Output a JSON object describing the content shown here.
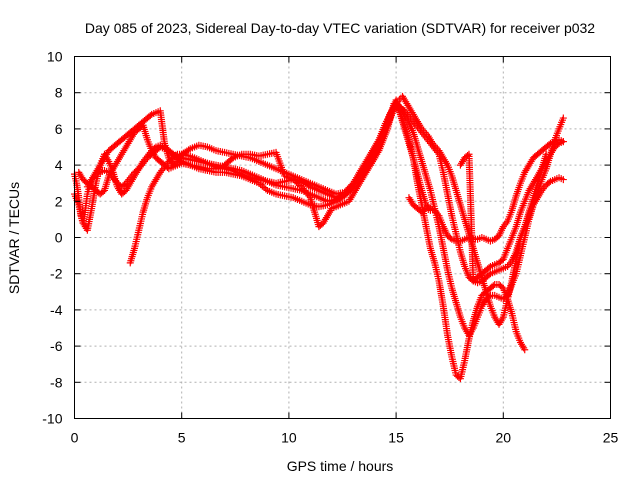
{
  "chart_data": {
    "type": "scatter",
    "title": "Day 085 of 2023, Sidereal Day-to-day VTEC variation (SDTVAR) for receiver p032",
    "xlabel": "GPS time / hours",
    "ylabel": "SDTVAR / TECUs",
    "xlim": [
      0,
      25
    ],
    "ylim": [
      -10,
      10
    ],
    "xticks": [
      0,
      5,
      10,
      15,
      20,
      25
    ],
    "yticks": [
      -10,
      -8,
      -6,
      -4,
      -2,
      0,
      2,
      4,
      6,
      8,
      10
    ],
    "grid": true,
    "marker": "+",
    "color": "#ff0000",
    "series": [
      {
        "x": [
          0.0,
          0.1,
          0.2,
          0.3,
          0.4,
          0.5,
          0.6,
          0.7,
          0.8,
          0.9,
          1.0,
          1.2,
          1.4,
          1.6,
          1.8,
          2.0,
          2.2,
          2.4,
          2.6,
          2.8,
          3.0,
          3.2,
          3.4,
          3.6,
          3.8,
          4.0,
          4.2,
          4.4,
          4.6,
          4.8,
          5.0,
          5.4,
          5.8,
          6.2,
          6.6,
          7.0,
          7.4,
          7.8,
          8.2,
          8.6,
          9.0,
          9.4,
          9.8,
          10.2,
          10.6,
          11.0,
          11.4,
          11.8,
          12.2,
          12.6,
          13.0,
          13.4,
          13.8,
          14.2,
          14.5,
          14.8,
          15.0,
          15.2,
          15.4,
          15.6,
          15.8,
          16.0,
          16.2,
          16.4,
          16.6,
          16.8,
          17.0,
          17.2,
          17.4,
          17.6,
          17.8,
          18.0,
          18.2,
          18.4,
          18.6,
          18.8,
          19.0,
          19.2,
          19.4,
          19.6,
          19.8,
          20.0,
          20.2,
          20.4,
          20.6,
          20.8,
          21.0,
          21.2,
          21.4,
          21.6,
          21.8,
          22.0,
          22.2,
          22.4,
          22.6,
          22.8
        ],
        "y": [
          3.5,
          3.0,
          2.2,
          1.2,
          0.8,
          1.5,
          2.4,
          2.8,
          3.2,
          3.4,
          3.5,
          3.6,
          3.7,
          3.6,
          3.3,
          3.0,
          2.8,
          3.0,
          3.3,
          3.6,
          3.8,
          4.1,
          4.4,
          4.6,
          4.8,
          5.0,
          4.9,
          4.8,
          4.6,
          4.5,
          4.4,
          4.3,
          4.2,
          4.1,
          4.0,
          3.9,
          3.8,
          3.7,
          3.5,
          3.3,
          3.1,
          2.9,
          2.8,
          2.7,
          2.6,
          2.4,
          2.2,
          2.0,
          2.1,
          2.4,
          2.9,
          3.6,
          4.4,
          5.4,
          6.3,
          7.0,
          7.3,
          6.9,
          6.2,
          5.4,
          4.4,
          3.5,
          2.6,
          1.8,
          1.6,
          1.5,
          1.2,
          0.6,
          0.1,
          -0.1,
          -0.2,
          -0.2,
          -0.1,
          0.0,
          -0.1,
          -0.1,
          0.0,
          -0.1,
          -0.2,
          -0.1,
          0.1,
          0.6,
          0.9,
          1.5,
          2.3,
          3.0,
          3.6,
          4.0,
          4.4,
          4.6,
          4.8,
          5.0,
          5.2,
          5.3,
          5.4,
          5.3
        ]
      },
      {
        "x": [
          0.0,
          0.2,
          0.4,
          0.6,
          0.8,
          1.0,
          1.2,
          1.4,
          1.6,
          1.8,
          2.0,
          2.2,
          2.4,
          2.6,
          2.8,
          3.0,
          3.2,
          3.4,
          3.6,
          3.8,
          4.0,
          4.2,
          4.4,
          4.6,
          4.8,
          5.0,
          5.4,
          5.8,
          6.2,
          6.6,
          7.0,
          7.4,
          7.8,
          8.2,
          8.6,
          9.0,
          9.4,
          9.8,
          10.2,
          10.6,
          11.0,
          11.4,
          11.8,
          12.2,
          12.6,
          13.0,
          13.4,
          13.8,
          14.2,
          14.6,
          14.9,
          15.2,
          15.5,
          15.8,
          16.0,
          16.2,
          16.4,
          16.6,
          16.8,
          17.0,
          17.2,
          17.4,
          17.6,
          17.8,
          18.0,
          18.2,
          18.4,
          18.6,
          18.8,
          19.0,
          19.2,
          19.4,
          19.6,
          19.8,
          20.0,
          20.2,
          20.4,
          20.6,
          20.8,
          21.0,
          21.2,
          21.4,
          21.6,
          21.8,
          22.0,
          22.2,
          22.4,
          22.6,
          22.8
        ],
        "y": [
          2.4,
          1.8,
          0.8,
          0.4,
          1.6,
          3.0,
          4.0,
          4.6,
          4.2,
          3.6,
          2.8,
          2.4,
          2.6,
          3.0,
          3.4,
          3.8,
          4.2,
          4.5,
          4.8,
          5.0,
          5.1,
          5.0,
          4.8,
          4.6,
          4.4,
          4.2,
          4.0,
          3.8,
          3.7,
          3.6,
          3.6,
          3.5,
          3.4,
          3.2,
          3.0,
          2.6,
          2.4,
          2.3,
          2.2,
          2.0,
          1.8,
          1.7,
          1.8,
          2.0,
          2.3,
          2.8,
          3.4,
          4.0,
          4.8,
          6.0,
          7.4,
          7.2,
          6.6,
          5.8,
          5.0,
          4.2,
          3.4,
          2.6,
          1.6,
          0.6,
          -0.6,
          -1.8,
          -2.8,
          -3.6,
          -4.4,
          -5.0,
          -5.4,
          -5.0,
          -4.4,
          -3.8,
          -3.4,
          -3.2,
          -3.2,
          -3.3,
          -3.4,
          -3.2,
          -2.6,
          -2.0,
          -1.0,
          0.0,
          1.0,
          1.8,
          2.5,
          3.2,
          3.8,
          4.6,
          5.4,
          6.0,
          6.6
        ]
      },
      {
        "x": [
          0.6,
          0.8,
          1.0,
          1.2,
          1.4,
          1.6,
          1.8,
          2.0,
          2.2,
          2.4,
          2.6,
          2.8,
          3.0,
          3.2,
          3.4,
          3.6,
          3.8,
          4.0,
          4.2,
          4.4,
          4.6,
          4.8,
          5.0,
          5.4,
          5.8,
          6.2,
          6.6,
          7.0,
          7.4,
          7.8,
          8.2,
          8.6,
          9.0,
          9.4,
          9.8,
          10.2,
          10.6,
          11.0,
          11.4,
          11.8,
          12.2,
          12.6,
          13.0,
          13.4,
          13.8,
          14.2,
          14.6,
          15.0,
          15.4,
          15.8,
          16.2,
          16.6,
          17.0,
          17.2,
          17.4,
          17.6,
          17.8,
          18.0,
          18.2,
          18.4,
          18.6,
          18.8,
          19.0,
          19.2,
          19.4,
          19.6,
          19.8,
          20.0,
          20.2,
          20.4,
          20.6,
          20.8,
          21.0,
          21.2,
          21.4,
          21.6,
          21.8,
          22.0,
          22.2,
          22.4,
          22.6,
          22.8
        ],
        "y": [
          2.8,
          3.2,
          3.6,
          4.0,
          4.4,
          4.8,
          5.0,
          5.2,
          5.4,
          5.6,
          5.8,
          6.0,
          6.2,
          6.4,
          6.6,
          6.8,
          6.9,
          7.0,
          5.2,
          4.4,
          4.0,
          4.2,
          4.6,
          4.9,
          5.1,
          5.0,
          4.8,
          4.7,
          4.6,
          4.5,
          4.4,
          4.2,
          4.0,
          3.8,
          3.6,
          3.4,
          3.2,
          3.0,
          2.8,
          2.6,
          2.4,
          2.5,
          3.0,
          3.8,
          4.6,
          5.4,
          6.2,
          7.4,
          7.0,
          6.4,
          5.8,
          5.2,
          4.6,
          3.6,
          2.4,
          1.2,
          0.2,
          -0.8,
          -1.6,
          -2.2,
          -2.4,
          -2.5,
          -2.4,
          -2.2,
          -2.0,
          -1.9,
          -1.8,
          -1.7,
          -1.6,
          -1.3,
          -0.8,
          0.0,
          0.6,
          1.2,
          1.8,
          2.2,
          2.6,
          2.9,
          3.1,
          3.2,
          3.3,
          3.2
        ]
      },
      {
        "x": [
          2.6,
          2.8,
          3.0,
          3.2,
          3.4,
          3.6,
          3.8,
          4.0,
          4.2,
          4.4,
          4.6,
          4.8,
          5.0,
          5.4,
          5.8,
          6.2,
          6.6,
          7.0,
          7.4,
          7.8,
          8.2,
          8.6,
          9.0,
          9.4,
          9.8,
          10.2,
          10.6,
          11.0,
          11.4,
          11.8,
          12.2,
          12.6,
          13.0,
          13.4,
          13.8,
          14.2,
          14.6,
          15.0,
          15.4,
          15.8,
          16.0,
          16.2,
          16.4,
          16.6,
          16.8,
          17.0,
          17.2,
          17.4,
          17.6,
          17.8,
          18.0,
          18.2,
          18.4,
          18.6,
          18.8,
          19.0,
          19.2,
          19.4,
          19.6,
          19.8,
          20.0,
          20.2,
          20.4,
          20.6,
          20.8,
          21.0
        ],
        "y": [
          -1.4,
          -0.6,
          0.4,
          1.4,
          2.2,
          2.8,
          3.2,
          3.6,
          3.9,
          4.2,
          4.4,
          4.6,
          4.6,
          4.5,
          4.3,
          4.1,
          3.9,
          3.8,
          3.7,
          3.5,
          3.3,
          3.2,
          3.1,
          3.0,
          3.1,
          3.2,
          3.1,
          2.8,
          2.6,
          2.4,
          2.2,
          2.4,
          2.8,
          3.4,
          4.2,
          5.0,
          6.4,
          7.6,
          6.0,
          4.4,
          3.0,
          1.8,
          0.6,
          -0.6,
          -1.4,
          -2.4,
          -3.8,
          -5.4,
          -6.6,
          -7.6,
          -7.8,
          -6.8,
          -5.6,
          -4.6,
          -3.8,
          -3.2,
          -3.0,
          -2.8,
          -2.6,
          -2.6,
          -2.8,
          -3.4,
          -4.2,
          -5.2,
          -5.8,
          -6.2
        ]
      },
      {
        "x": [
          0.2,
          0.4,
          0.6,
          0.8,
          1.0,
          1.2,
          1.4,
          1.6,
          1.8,
          2.0,
          2.2,
          2.4,
          2.6,
          2.8,
          3.0,
          3.2,
          3.4,
          3.6,
          3.8,
          4.0,
          4.2,
          4.4,
          4.6,
          4.8,
          5.0,
          5.4,
          5.8,
          6.2,
          6.6,
          7.0,
          7.2,
          7.4,
          7.8,
          8.2,
          8.6,
          9.0,
          9.4,
          9.8,
          10.2,
          10.6,
          11.0,
          11.2,
          11.4,
          11.6,
          11.8,
          12.0,
          12.4,
          12.8,
          13.2,
          13.6,
          14.0,
          14.4,
          14.7,
          15.0,
          15.3,
          15.6,
          15.9,
          16.2,
          16.5,
          16.7,
          17.0,
          17.2,
          17.4,
          17.6,
          17.8,
          18.0,
          18.2,
          18.4,
          18.6,
          18.8,
          19.0,
          19.2,
          19.4,
          19.6,
          19.8,
          20.0,
          20.2,
          20.4,
          20.6,
          20.8,
          21.0,
          21.2,
          21.4,
          21.6,
          21.8,
          22.0
        ],
        "y": [
          3.6,
          3.2,
          3.0,
          2.8,
          2.6,
          2.4,
          2.6,
          3.4,
          3.8,
          4.2,
          4.6,
          5.0,
          5.4,
          5.8,
          6.0,
          6.2,
          5.4,
          4.8,
          4.4,
          4.2,
          4.0,
          3.8,
          3.9,
          4.0,
          4.1,
          4.0,
          3.9,
          3.8,
          3.8,
          4.0,
          4.2,
          4.4,
          4.6,
          4.6,
          4.5,
          4.6,
          4.7,
          3.4,
          3.2,
          2.8,
          2.2,
          1.4,
          0.6,
          0.8,
          1.2,
          1.6,
          1.8,
          2.0,
          2.8,
          3.6,
          4.4,
          5.6,
          6.8,
          7.4,
          7.8,
          7.2,
          6.6,
          6.0,
          5.6,
          5.2,
          4.8,
          4.4,
          4.0,
          3.4,
          2.6,
          1.8,
          1.0,
          0.2,
          -0.6,
          -1.4,
          -2.2,
          -3.0,
          -3.8,
          -4.4,
          -4.8,
          -4.4,
          -3.4,
          -2.4,
          -1.2,
          0.0,
          0.6,
          1.4,
          2.2,
          3.0,
          3.8,
          4.6
        ]
      },
      {
        "x": [
          15.6,
          15.8,
          16.0,
          16.2,
          16.4,
          16.6,
          18.0,
          18.2,
          18.4,
          18.6,
          18.8,
          19.0,
          19.2,
          19.4,
          19.6,
          19.8,
          20.0,
          20.2,
          20.4,
          20.6,
          20.8,
          21.0,
          21.2,
          21.4,
          21.6,
          21.8,
          22.0,
          22.2,
          22.4,
          22.6,
          22.8
        ],
        "y": [
          2.2,
          1.8,
          1.6,
          1.4,
          1.6,
          1.5,
          4.0,
          4.4,
          4.6,
          -2.4,
          -2.2,
          -2.0,
          -1.8,
          -1.6,
          -1.5,
          -1.4,
          -1.2,
          -0.6,
          0.0,
          0.6,
          1.4,
          2.0,
          2.6,
          3.0,
          3.4,
          3.8,
          4.2,
          4.6,
          5.0,
          5.2,
          5.3
        ]
      }
    ]
  }
}
